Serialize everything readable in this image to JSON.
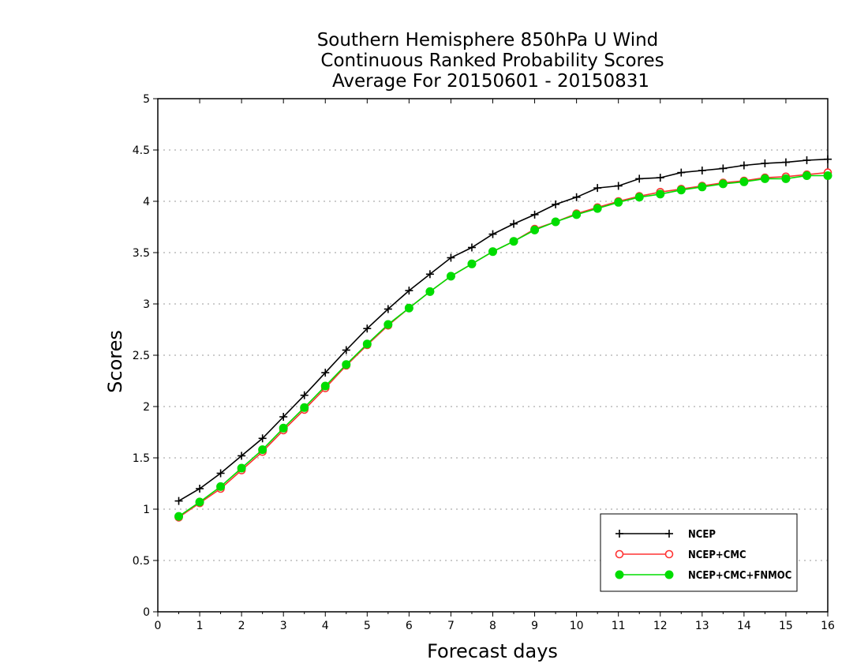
{
  "chart_data": {
    "type": "line",
    "title": [
      "Southern Hemisphere 850hPa U Wind",
      "Continuous Ranked Probability Scores",
      "Average For 20150601 - 20150831"
    ],
    "xlabel": "Forecast days",
    "ylabel": "Scores",
    "xlim": [
      0,
      16
    ],
    "ylim": [
      0,
      5
    ],
    "xticks": [
      "0",
      "1",
      "2",
      "3",
      "4",
      "5",
      "6",
      "7",
      "8",
      "9",
      "10",
      "11",
      "12",
      "13",
      "14",
      "15",
      "16"
    ],
    "yticks": [
      "0",
      "0.5",
      "1",
      "1.5",
      "2",
      "2.5",
      "3",
      "3.5",
      "4",
      "4.5",
      "5"
    ],
    "grid": "horizontal-dotted",
    "legend_position": "bottom-right",
    "x": [
      0.5,
      1,
      1.5,
      2,
      2.5,
      3,
      3.5,
      4,
      4.5,
      5,
      5.5,
      6,
      6.5,
      7,
      7.5,
      8,
      8.5,
      9,
      9.5,
      10,
      10.5,
      11,
      11.5,
      12,
      12.5,
      13,
      13.5,
      14,
      14.5,
      15,
      15.5,
      16
    ],
    "series": [
      {
        "name": "NCEP",
        "color": "#000000",
        "marker": "plus",
        "values": [
          1.08,
          1.2,
          1.35,
          1.52,
          1.69,
          1.9,
          2.11,
          2.33,
          2.55,
          2.76,
          2.95,
          3.13,
          3.29,
          3.45,
          3.55,
          3.68,
          3.78,
          3.87,
          3.97,
          4.04,
          4.13,
          4.15,
          4.22,
          4.23,
          4.28,
          4.3,
          4.32,
          4.35,
          4.37,
          4.38,
          4.4,
          4.41
        ]
      },
      {
        "name": "NCEP+CMC",
        "color": "#ff3333",
        "marker": "open-circle",
        "values": [
          0.92,
          1.06,
          1.2,
          1.38,
          1.56,
          1.77,
          1.97,
          2.18,
          2.4,
          2.6,
          2.79,
          2.96,
          3.12,
          3.27,
          3.39,
          3.51,
          3.61,
          3.73,
          3.8,
          3.88,
          3.94,
          4.0,
          4.05,
          4.09,
          4.12,
          4.15,
          4.18,
          4.2,
          4.23,
          4.24,
          4.26,
          4.28
        ]
      },
      {
        "name": "NCEP+CMC+FNMOC",
        "color": "#00dd00",
        "marker": "filled-circle",
        "values": [
          0.93,
          1.07,
          1.22,
          1.4,
          1.58,
          1.79,
          1.99,
          2.2,
          2.41,
          2.61,
          2.8,
          2.96,
          3.12,
          3.27,
          3.39,
          3.51,
          3.61,
          3.72,
          3.8,
          3.87,
          3.93,
          3.99,
          4.04,
          4.07,
          4.11,
          4.14,
          4.17,
          4.19,
          4.22,
          4.22,
          4.25,
          4.25
        ]
      }
    ]
  }
}
